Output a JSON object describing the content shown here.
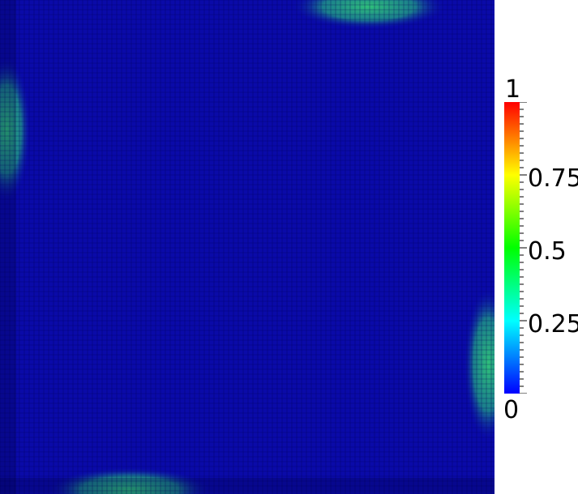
{
  "colorbar": {
    "min_label": "0",
    "max_label": "1",
    "tick_labels": [
      "0.25",
      "0.5",
      "0.75"
    ],
    "colors": [
      "#0000ff",
      "#00ffff",
      "#00ff00",
      "#ffff00",
      "#ff0000"
    ]
  },
  "field": {
    "background_color": "#0a0aa8",
    "mesh_line_color": "#00005a",
    "highlight_color": "#22b06a"
  }
}
